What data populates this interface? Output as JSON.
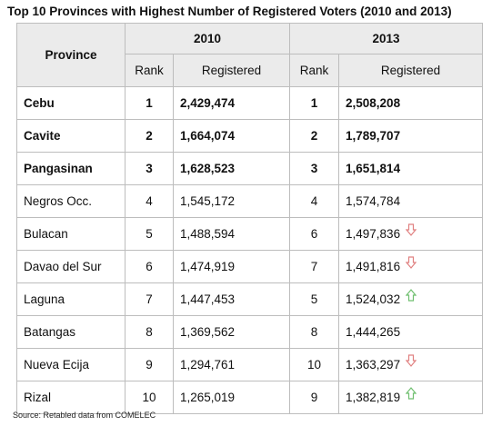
{
  "title": "Top 10 Provinces with Highest Number of Registered Voters (2010 and 2013)",
  "source": "Source: Retabled data from COMELEC",
  "colors": {
    "header_bg": "#ebebeb",
    "border": "#bdbdbd",
    "arrow_down": "#e08080",
    "arrow_up": "#6fbf6f"
  },
  "table": {
    "province_header": "Province",
    "year_2010": "2010",
    "year_2013": "2013",
    "rank_label_2010": "Rank",
    "registered_label_2010": "Registered",
    "rank_label_2013": "Rank",
    "registered_label_2013": "Registered",
    "rows": [
      {
        "province": "Cebu",
        "rank_2010": "1",
        "registered_2010": "2,429,474",
        "rank_2013": "1",
        "registered_2013": "2,508,208",
        "trend": "",
        "bold": true
      },
      {
        "province": "Cavite",
        "rank_2010": "2",
        "registered_2010": "1,664,074",
        "rank_2013": "2",
        "registered_2013": "1,789,707",
        "trend": "",
        "bold": true
      },
      {
        "province": "Pangasinan",
        "rank_2010": "3",
        "registered_2010": "1,628,523",
        "rank_2013": "3",
        "registered_2013": "1,651,814",
        "trend": "",
        "bold": true
      },
      {
        "province": "Negros Occ.",
        "rank_2010": "4",
        "registered_2010": "1,545,172",
        "rank_2013": "4",
        "registered_2013": "1,574,784",
        "trend": "",
        "bold": false
      },
      {
        "province": "Bulacan",
        "rank_2010": "5",
        "registered_2010": "1,488,594",
        "rank_2013": "6",
        "registered_2013": "1,497,836",
        "trend": "down",
        "bold": false
      },
      {
        "province": "Davao del Sur",
        "rank_2010": "6",
        "registered_2010": "1,474,919",
        "rank_2013": "7",
        "registered_2013": "1,491,816",
        "trend": "down",
        "bold": false
      },
      {
        "province": "Laguna",
        "rank_2010": "7",
        "registered_2010": "1,447,453",
        "rank_2013": "5",
        "registered_2013": "1,524,032",
        "trend": "up",
        "bold": false
      },
      {
        "province": "Batangas",
        "rank_2010": "8",
        "registered_2010": "1,369,562",
        "rank_2013": "8",
        "registered_2013": "1,444,265",
        "trend": "",
        "bold": false
      },
      {
        "province": "Nueva Ecija",
        "rank_2010": "9",
        "registered_2010": "1,294,761",
        "rank_2013": "10",
        "registered_2013": "1,363,297",
        "trend": "down",
        "bold": false
      },
      {
        "province": "Rizal",
        "rank_2010": "10",
        "registered_2010": "1,265,019",
        "rank_2013": "9",
        "registered_2013": "1,382,819",
        "trend": "up",
        "bold": false
      }
    ]
  }
}
